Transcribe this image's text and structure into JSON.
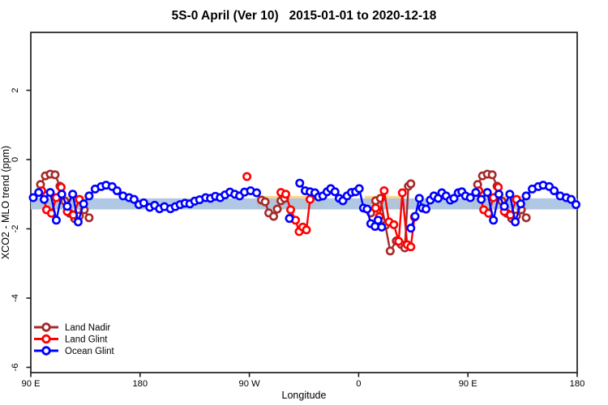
{
  "title": "5S-0 April (Ver 10)   2015-01-01 to 2020-12-18",
  "chart_data": {
    "type": "line",
    "title": "5S-0 April (Ver 10)   2015-01-01 to 2020-12-18",
    "xlabel": "Longitude",
    "ylabel": "XCO2 - MLO trend (ppm)",
    "xlim": [
      90,
      540
    ],
    "ylim": [
      -6.15,
      3.67
    ],
    "grid": false,
    "x_ticks": [
      {
        "value": 90,
        "label": "90 E"
      },
      {
        "value": 180,
        "label": "180"
      },
      {
        "value": 270,
        "label": "90 W"
      },
      {
        "value": 360,
        "label": "0"
      },
      {
        "value": 450,
        "label": "90 E"
      },
      {
        "value": 540,
        "label": "180"
      }
    ],
    "y_ticks": [
      {
        "value": 2,
        "label": "2"
      },
      {
        "value": 0,
        "label": "0"
      },
      {
        "value": -2,
        "label": "-2"
      },
      {
        "value": -4,
        "label": "-4"
      },
      {
        "value": -6,
        "label": "-6"
      }
    ],
    "bands": [
      {
        "name": "orange-band",
        "color": "#ffd685",
        "y_from": -1.43,
        "y_to": -1.05,
        "segments": [
          [
            101,
            135
          ],
          [
            276,
            330
          ],
          [
            365,
            397
          ],
          [
            452,
            500
          ]
        ]
      },
      {
        "name": "blue-band",
        "color": "#a9c2e1",
        "opacity": 0.9,
        "y_from": -1.44,
        "y_to": -1.12,
        "segments": [
          [
            90,
            540
          ]
        ]
      }
    ],
    "series": [
      {
        "name": "Land Nadir",
        "color": "#a52a2a",
        "segments": [
          [
            [
              98,
              -0.72
            ],
            [
              102,
              -0.47
            ],
            [
              106,
              -0.42
            ],
            [
              110,
              -0.44
            ],
            [
              114,
              -0.77
            ],
            [
              118,
              -1.2
            ],
            [
              122,
              -1.55
            ],
            [
              126,
              -1.7
            ],
            [
              130,
              -1.63
            ],
            [
              134,
              -1.45
            ],
            [
              138,
              -1.68
            ]
          ],
          [
            [
              280,
              -1.17
            ],
            [
              283,
              -1.22
            ],
            [
              286,
              -1.54
            ],
            [
              290,
              -1.64
            ],
            [
              293,
              -1.43
            ],
            [
              296,
              -1.19
            ],
            [
              299,
              -1.12
            ]
          ],
          [
            [
              370,
              -1.54
            ],
            [
              374,
              -1.19
            ],
            [
              378,
              -1.12
            ],
            [
              382,
              -1.9
            ],
            [
              386,
              -2.64
            ],
            [
              391,
              -2.35
            ],
            [
              395,
              -2.45
            ],
            [
              398,
              -2.55
            ],
            [
              401,
              -0.77
            ],
            [
              403,
              -0.7
            ]
          ],
          [
            [
              458,
              -0.72
            ],
            [
              462,
              -0.47
            ],
            [
              466,
              -0.42
            ],
            [
              470,
              -0.44
            ],
            [
              474,
              -0.77
            ],
            [
              478,
              -1.2
            ],
            [
              482,
              -1.55
            ],
            [
              486,
              -1.7
            ],
            [
              490,
              -1.63
            ],
            [
              494,
              -1.45
            ],
            [
              498,
              -1.68
            ]
          ]
        ],
        "isolated_points": []
      },
      {
        "name": "Land Glint",
        "color": "#ff0000",
        "segments": [
          [
            [
              99,
              -0.9
            ],
            [
              103,
              -1.45
            ],
            [
              107,
              -1.55
            ],
            [
              111,
              -1.1
            ],
            [
              115,
              -0.8
            ],
            [
              120,
              -1.5
            ],
            [
              125,
              -1.6
            ],
            [
              130,
              -1.15
            ]
          ],
          [
            [
              296,
              -0.95
            ],
            [
              300,
              -1.0
            ],
            [
              304,
              -1.45
            ],
            [
              308,
              -1.75
            ],
            [
              311,
              -2.08
            ],
            [
              314,
              -1.95
            ],
            [
              317,
              -2.03
            ],
            [
              320,
              -1.15
            ]
          ],
          [
            [
              374,
              -1.4
            ],
            [
              377,
              -1.65
            ],
            [
              381,
              -0.9
            ],
            [
              385,
              -1.8
            ],
            [
              389,
              -1.88
            ],
            [
              393,
              -2.36
            ],
            [
              396,
              -0.96
            ],
            [
              400,
              -2.46
            ],
            [
              403,
              -2.52
            ],
            [
              406,
              -1.66
            ]
          ],
          [
            [
              459,
              -0.9
            ],
            [
              463,
              -1.45
            ],
            [
              467,
              -1.55
            ],
            [
              471,
              -1.1
            ],
            [
              475,
              -0.8
            ],
            [
              480,
              -1.5
            ],
            [
              485,
              -1.6
            ],
            [
              490,
              -1.15
            ]
          ]
        ],
        "isolated_points": [
          [
            268,
            -0.49
          ]
        ]
      },
      {
        "name": "Ocean Glint",
        "color": "#0000ff",
        "segments": [
          [
            [
              92,
              -1.1
            ],
            [
              96.5,
              -0.95
            ],
            [
              101,
              -1.15
            ],
            [
              106,
              -0.95
            ],
            [
              111,
              -1.75
            ],
            [
              115.5,
              -1.0
            ],
            [
              120,
              -1.35
            ],
            [
              124.5,
              -1.0
            ],
            [
              129,
              -1.8
            ],
            [
              133.5,
              -1.28
            ],
            [
              138,
              -1.05
            ],
            [
              143,
              -0.85
            ],
            [
              148,
              -0.78
            ],
            [
              152,
              -0.74
            ],
            [
              157,
              -0.78
            ],
            [
              161,
              -0.9
            ],
            [
              166,
              -1.05
            ],
            [
              171,
              -1.1
            ],
            [
              175,
              -1.15
            ],
            [
              179,
              -1.3
            ],
            [
              183,
              -1.25
            ],
            [
              188,
              -1.38
            ],
            [
              192,
              -1.32
            ],
            [
              196,
              -1.42
            ],
            [
              200,
              -1.36
            ],
            [
              205,
              -1.42
            ],
            [
              209,
              -1.36
            ],
            [
              213,
              -1.3
            ],
            [
              217,
              -1.26
            ],
            [
              221,
              -1.28
            ],
            [
              225,
              -1.2
            ],
            [
              229,
              -1.16
            ],
            [
              234,
              -1.1
            ],
            [
              238,
              -1.12
            ],
            [
              242,
              -1.06
            ],
            [
              246,
              -1.1
            ],
            [
              250,
              -1.02
            ],
            [
              254,
              -0.94
            ],
            [
              258,
              -1.0
            ],
            [
              262,
              -1.05
            ],
            [
              266,
              -0.94
            ],
            [
              271,
              -0.9
            ],
            [
              276,
              -0.96
            ]
          ],
          [
            [
              311.5,
              -0.68
            ],
            [
              316,
              -0.9
            ],
            [
              320,
              -0.93
            ],
            [
              324,
              -0.96
            ],
            [
              327,
              -1.08
            ],
            [
              330.5,
              -1.05
            ],
            [
              334,
              -0.93
            ],
            [
              337,
              -0.84
            ],
            [
              340.5,
              -0.93
            ],
            [
              344,
              -1.12
            ],
            [
              347,
              -1.19
            ],
            [
              350.5,
              -1.05
            ],
            [
              354,
              -0.95
            ],
            [
              357.5,
              -0.93
            ],
            [
              360.5,
              -0.84
            ],
            [
              364,
              -1.4
            ],
            [
              367,
              -1.43
            ],
            [
              370,
              -1.85
            ],
            [
              373.5,
              -1.93
            ],
            [
              376,
              -1.75
            ],
            [
              379,
              -1.95
            ]
          ],
          [
            [
              403,
              -1.98
            ],
            [
              406.5,
              -1.64
            ],
            [
              410,
              -1.12
            ],
            [
              412.5,
              -1.4
            ],
            [
              415.5,
              -1.43
            ],
            [
              419,
              -1.17
            ],
            [
              422,
              -1.05
            ],
            [
              425.5,
              -1.12
            ],
            [
              428.5,
              -0.96
            ],
            [
              432,
              -1.05
            ],
            [
              435.5,
              -1.17
            ],
            [
              438.5,
              -1.12
            ],
            [
              442,
              -0.96
            ],
            [
              445,
              -0.93
            ],
            [
              448,
              -1.05
            ],
            [
              452,
              -1.1
            ],
            [
              456.5,
              -0.95
            ],
            [
              461,
              -1.15
            ],
            [
              466,
              -0.95
            ],
            [
              471,
              -1.75
            ],
            [
              475.5,
              -1.0
            ],
            [
              480,
              -1.35
            ],
            [
              484.5,
              -1.0
            ],
            [
              489,
              -1.8
            ],
            [
              493.5,
              -1.28
            ],
            [
              498,
              -1.05
            ],
            [
              503,
              -0.85
            ],
            [
              508,
              -0.78
            ],
            [
              512,
              -0.74
            ],
            [
              517,
              -0.78
            ],
            [
              521,
              -0.9
            ],
            [
              526,
              -1.05
            ],
            [
              531,
              -1.1
            ],
            [
              535,
              -1.15
            ],
            [
              539,
              -1.3
            ]
          ]
        ],
        "isolated_points": [
          [
            303,
            -1.7
          ]
        ]
      }
    ],
    "legend": {
      "position": "bottom-left",
      "entries": [
        {
          "label": "Land Nadir",
          "color": "#a52a2a"
        },
        {
          "label": "Land Glint",
          "color": "#ff0000"
        },
        {
          "label": "Ocean Glint",
          "color": "#0000ff"
        }
      ]
    }
  },
  "layout_colors": {
    "box_stroke": "#2a2a2a",
    "tick_stroke": "#1c1c1c"
  }
}
